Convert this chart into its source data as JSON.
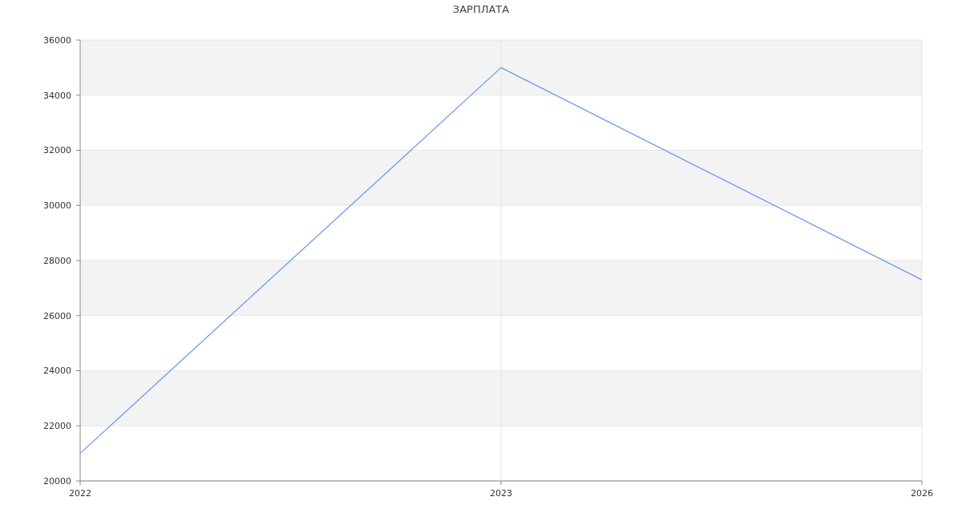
{
  "chart_data": {
    "type": "line",
    "title": "ЗАРПЛАТА",
    "categories": [
      "2022",
      "2023",
      "2026"
    ],
    "series": [
      {
        "color": "#6f9af0",
        "values": [
          21000,
          35000,
          27300
        ]
      }
    ],
    "ylim": [
      20000,
      36000
    ],
    "yticks": [
      20000,
      22000,
      24000,
      26000,
      28000,
      30000,
      32000,
      34000,
      36000
    ],
    "grid": true,
    "marker": "none",
    "line_style": "solid"
  }
}
